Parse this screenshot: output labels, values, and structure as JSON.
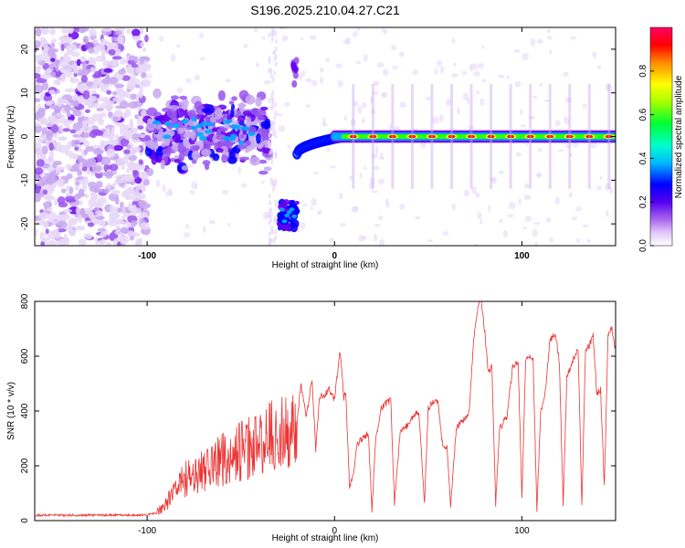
{
  "figure_title": "S196.2025.210.04.27.C21",
  "colors": {
    "snr_line": "#ee3333",
    "axis": "#000000",
    "spectrum_colormap": [
      "#ffffff",
      "#e8d8f8",
      "#c8a8f0",
      "#9955ee",
      "#6600ee",
      "#0000ff",
      "#00aaff",
      "#00ffff",
      "#00ff88",
      "#33ff00",
      "#ffff00",
      "#ff8800",
      "#ff0000",
      "#ff0066"
    ]
  },
  "chart_data": [
    {
      "type": "heatmap",
      "title": "S196.2025.210.04.27.C21",
      "xlabel": "Height of straight line (km)",
      "ylabel": "Frequency (Hz)",
      "xlim": [
        -160,
        150
      ],
      "ylim": [
        -25,
        25
      ],
      "x_ticks": [
        -100,
        0,
        100
      ],
      "y_ticks": [
        -20,
        -10,
        0,
        10,
        20
      ],
      "colorbar": {
        "label": "Normalized spectral amplitude",
        "range": [
          0,
          1
        ],
        "ticks": [
          0.0,
          0.2,
          0.4,
          0.6,
          0.8
        ]
      },
      "features": {
        "noise_region_x": [
          -160,
          -100
        ],
        "cluster_region_x": [
          -100,
          -35
        ],
        "cluster_frequency_hz": 1,
        "gap_x": [
          -35,
          -22
        ],
        "branch_x": [
          -30,
          -20
        ],
        "branch_frequency_hz": -18,
        "upper_blob_x": -21,
        "upper_blob_frequency_hz": 15,
        "main_line_start_x": -20,
        "main_line_start_frequency_hz": -4,
        "main_line_frequency_hz": 0
      }
    },
    {
      "type": "line",
      "xlabel": "Height of straight line (km)",
      "ylabel": "SNR (10 * v/v)",
      "xlim": [
        -160,
        150
      ],
      "ylim": [
        0,
        800
      ],
      "x_ticks": [
        -100,
        0,
        100
      ],
      "y_ticks": [
        0,
        200,
        400,
        600,
        800
      ],
      "series": [
        {
          "x": [
            -160,
            -140,
            -120,
            -100,
            -95,
            -90,
            -85,
            -80,
            -75,
            -70,
            -65,
            -60,
            -55,
            -50,
            -45,
            -40,
            -35,
            -30,
            -25,
            -20,
            -18,
            -15,
            -12,
            -10,
            -8,
            -5,
            -3,
            0,
            3,
            5,
            6,
            8,
            10,
            12,
            15,
            18,
            20,
            22,
            25,
            28,
            30,
            32,
            35,
            38,
            40,
            42,
            45,
            48,
            50,
            52,
            55,
            58,
            60,
            62,
            65,
            68,
            70,
            72,
            74,
            76,
            78,
            80,
            82,
            84,
            86,
            88,
            90,
            92,
            95,
            98,
            100,
            102,
            104,
            106,
            108,
            110,
            112,
            115,
            118,
            120,
            122,
            124,
            126,
            128,
            130,
            132,
            134,
            136,
            138,
            140,
            142,
            144,
            146,
            148,
            150
          ],
          "y": [
            20,
            20,
            20,
            20,
            30,
            60,
            120,
            150,
            170,
            190,
            200,
            220,
            240,
            250,
            270,
            280,
            300,
            320,
            330,
            350,
            500,
            380,
            520,
            260,
            450,
            460,
            480,
            440,
            620,
            450,
            470,
            120,
            160,
            280,
            300,
            320,
            40,
            300,
            410,
            430,
            440,
            60,
            320,
            340,
            360,
            380,
            400,
            60,
            410,
            430,
            440,
            260,
            270,
            60,
            340,
            360,
            380,
            400,
            640,
            760,
            820,
            700,
            540,
            560,
            60,
            330,
            360,
            380,
            560,
            580,
            80,
            590,
            600,
            580,
            30,
            400,
            440,
            660,
            680,
            580,
            60,
            520,
            560,
            600,
            620,
            60,
            630,
            640,
            680,
            460,
            480,
            120,
            680,
            700,
            620
          ]
        }
      ]
    }
  ]
}
